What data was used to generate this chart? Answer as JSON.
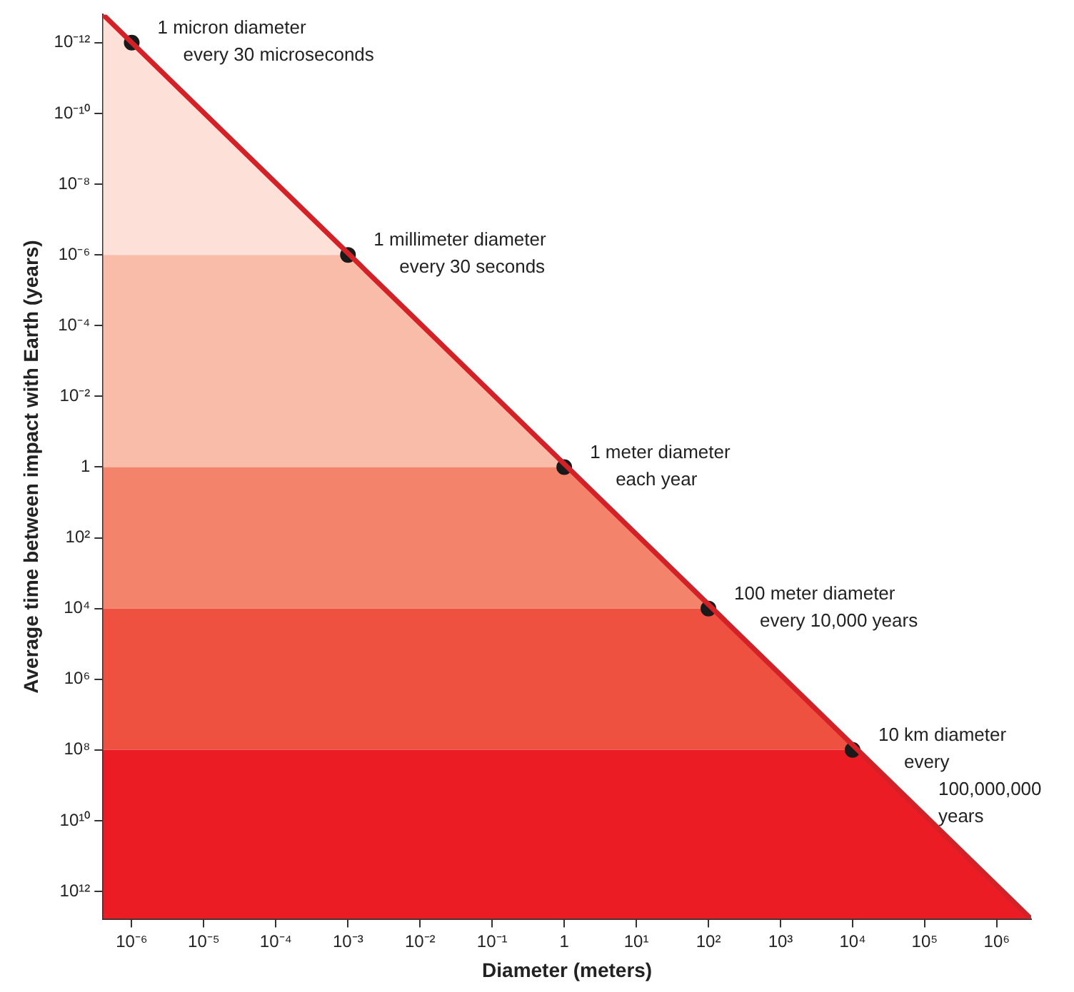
{
  "chart_data": {
    "type": "line",
    "xlabel": "Diameter (meters)",
    "ylabel": "Average time between impact with Earth (years)",
    "log": "xy",
    "grid": false,
    "legend": false,
    "xlim": [
      4e-07,
      3000000.0
    ],
    "ylim": [
      6000000000000.0,
      1.6e-13
    ],
    "xticks": [
      {
        "value": 1e-06,
        "label": "10⁻⁶"
      },
      {
        "value": 1e-05,
        "label": "10⁻⁵"
      },
      {
        "value": 0.0001,
        "label": "10⁻⁴"
      },
      {
        "value": 0.001,
        "label": "10⁻³"
      },
      {
        "value": 0.01,
        "label": "10⁻²"
      },
      {
        "value": 0.1,
        "label": "10⁻¹"
      },
      1,
      {
        "value": 10,
        "label": "10¹"
      },
      {
        "value": 100,
        "label": "10²"
      },
      {
        "value": 1000,
        "label": "10³"
      },
      {
        "value": 10000.0,
        "label": "10⁴"
      },
      {
        "value": 100000.0,
        "label": "10⁵"
      },
      {
        "value": 1000000.0,
        "label": "10⁶"
      }
    ],
    "yticks": [
      {
        "value": 1e-12,
        "label": "10⁻¹²"
      },
      {
        "value": 1e-10,
        "label": "10⁻¹⁰"
      },
      {
        "value": 1e-08,
        "label": "10⁻⁸"
      },
      {
        "value": 1e-06,
        "label": "10⁻⁶"
      },
      {
        "value": 0.0001,
        "label": "10⁻⁴"
      },
      {
        "value": 0.01,
        "label": "10⁻²"
      },
      1,
      {
        "value": 100,
        "label": "10²"
      },
      {
        "value": 10000.0,
        "label": "10⁴"
      },
      {
        "value": 1000000.0,
        "label": "10⁶"
      },
      {
        "value": 100000000.0,
        "label": "10⁸"
      },
      {
        "value": 10000000000.0,
        "label": "10¹⁰"
      },
      {
        "value": 1000000000000.0,
        "label": "10¹²"
      }
    ],
    "series": [
      {
        "type": "line",
        "color": "#d42027",
        "marker": "none",
        "x": [
          4e-07,
          3000000.0
        ],
        "values": [
          1.6e-13,
          6000000000000.0
        ]
      },
      {
        "type": "scatter",
        "color": "#1a1a1a",
        "marker": "circle",
        "x": [
          1e-06,
          0.001,
          1,
          100,
          10000.0
        ],
        "values": [
          1e-12,
          1e-06,
          1,
          10000.0,
          100000000.0
        ]
      }
    ],
    "bands": [
      {
        "axis": "y",
        "from": 1.6e-13,
        "to": 1e-06,
        "color": "#fde1d9"
      },
      {
        "axis": "y",
        "from": 1e-06,
        "to": 1,
        "color": "#f9bca9"
      },
      {
        "axis": "y",
        "from": 1,
        "to": 10000.0,
        "color": "#f4836b"
      },
      {
        "axis": "y",
        "from": 10000.0,
        "to": 100000000.0,
        "color": "#ef5140"
      },
      {
        "axis": "y",
        "from": 100000000.0,
        "to": 6000000000000.0,
        "color": "#ec1c24"
      }
    ],
    "annotations": [
      {
        "text": "1 micron diameter\nevery 30 microseconds",
        "x": 1e-06,
        "y": 1e-12
      },
      {
        "text": "1 millimeter diameter\nevery 30 seconds",
        "x": 0.001,
        "y": 1e-06
      },
      {
        "text": "1 meter diameter\neach year",
        "x": 1,
        "y": 1
      },
      {
        "text": "100 meter diameter\nevery 10,000 years",
        "x": 100,
        "y": 10000.0
      },
      {
        "text": "10 km diameter\nevery\n100,000,000\nyears",
        "x": 10000.0,
        "y": 100000000.0
      }
    ]
  }
}
